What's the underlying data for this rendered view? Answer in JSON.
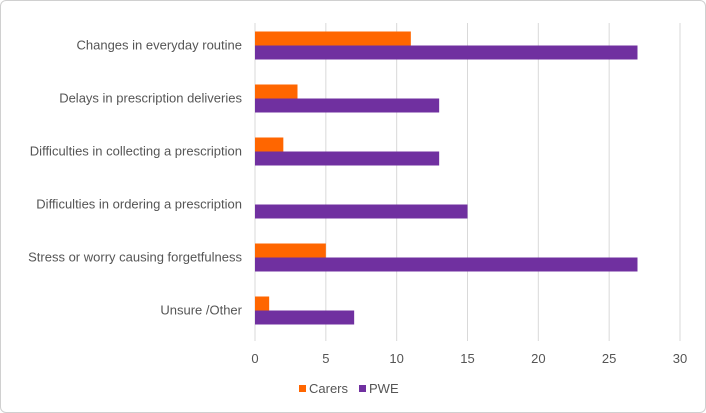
{
  "chart_data": {
    "type": "bar",
    "orientation": "horizontal",
    "title": "",
    "xlabel": "",
    "ylabel": "",
    "categories": [
      "Changes in everyday routine",
      "Delays in prescription deliveries",
      "Difficulties in collecting a prescription",
      "Difficulties in ordering a prescription",
      "Stress or worry causing forgetfulness",
      "Unsure /Other"
    ],
    "series": [
      {
        "name": "Carers",
        "color": "#FF6600",
        "values": [
          11,
          3,
          2,
          0,
          5,
          1
        ]
      },
      {
        "name": "PWE",
        "color": "#7030A0",
        "values": [
          27,
          13,
          13,
          15,
          27,
          7
        ]
      }
    ],
    "xlim": [
      0,
      30
    ],
    "xticks": [
      "0",
      "5",
      "10",
      "15",
      "20",
      "25",
      "30"
    ],
    "grid": true,
    "legend_position": "bottom"
  }
}
